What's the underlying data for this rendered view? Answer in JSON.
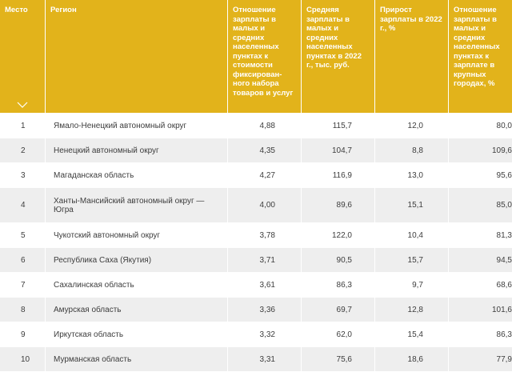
{
  "headers": {
    "place": "Место",
    "region": "Регион",
    "ratio": "Отношение зарплаты в малых и средних населенных пунктах к стоимости фиксирован-ного набора товаров и услуг",
    "salary": "Средняя зарплаты в малых и средних населенных пунктах в 2022 г., тыс. руб.",
    "growth": "Прирост зарплаты в 2022 г., %",
    "big_cities": "Отношение зарплаты в малых и средних населенных пунктах к зарплате в крупных городах, %"
  },
  "sort_icon": "chevron-down-icon",
  "colors": {
    "header_bg": "#e2b31b",
    "row_alt_bg": "#eeeeee"
  },
  "rows": [
    {
      "place": "1",
      "region": "Ямало-Ненецкий автономный округ",
      "ratio": "4,88",
      "salary": "115,7",
      "growth": "12,0",
      "big": "80,0"
    },
    {
      "place": "2",
      "region": "Ненецкий автономный округ",
      "ratio": "4,35",
      "salary": "104,7",
      "growth": "8,8",
      "big": "109,6"
    },
    {
      "place": "3",
      "region": "Магаданская область",
      "ratio": "4,27",
      "salary": "116,9",
      "growth": "13,0",
      "big": "95,6"
    },
    {
      "place": "4",
      "region": "Ханты-Мансийский автономный округ — Югра",
      "ratio": "4,00",
      "salary": "89,6",
      "growth": "15,1",
      "big": "85,0"
    },
    {
      "place": "5",
      "region": "Чукотский автономный округ",
      "ratio": "3,78",
      "salary": "122,0",
      "growth": "10,4",
      "big": "81,3"
    },
    {
      "place": "6",
      "region": "Республика Саха (Якутия)",
      "ratio": "3,71",
      "salary": "90,5",
      "growth": "15,7",
      "big": "94,5"
    },
    {
      "place": "7",
      "region": "Сахалинская область",
      "ratio": "3,61",
      "salary": "86,3",
      "growth": "9,7",
      "big": "68,6"
    },
    {
      "place": "8",
      "region": "Амурская область",
      "ratio": "3,36",
      "salary": "69,7",
      "growth": "12,8",
      "big": "101,6"
    },
    {
      "place": "9",
      "region": "Иркутская область",
      "ratio": "3,32",
      "salary": "62,0",
      "growth": "15,4",
      "big": "86,3"
    },
    {
      "place": "10",
      "region": "Мурманская область",
      "ratio": "3,31",
      "salary": "75,6",
      "growth": "18,6",
      "big": "77,9"
    }
  ]
}
